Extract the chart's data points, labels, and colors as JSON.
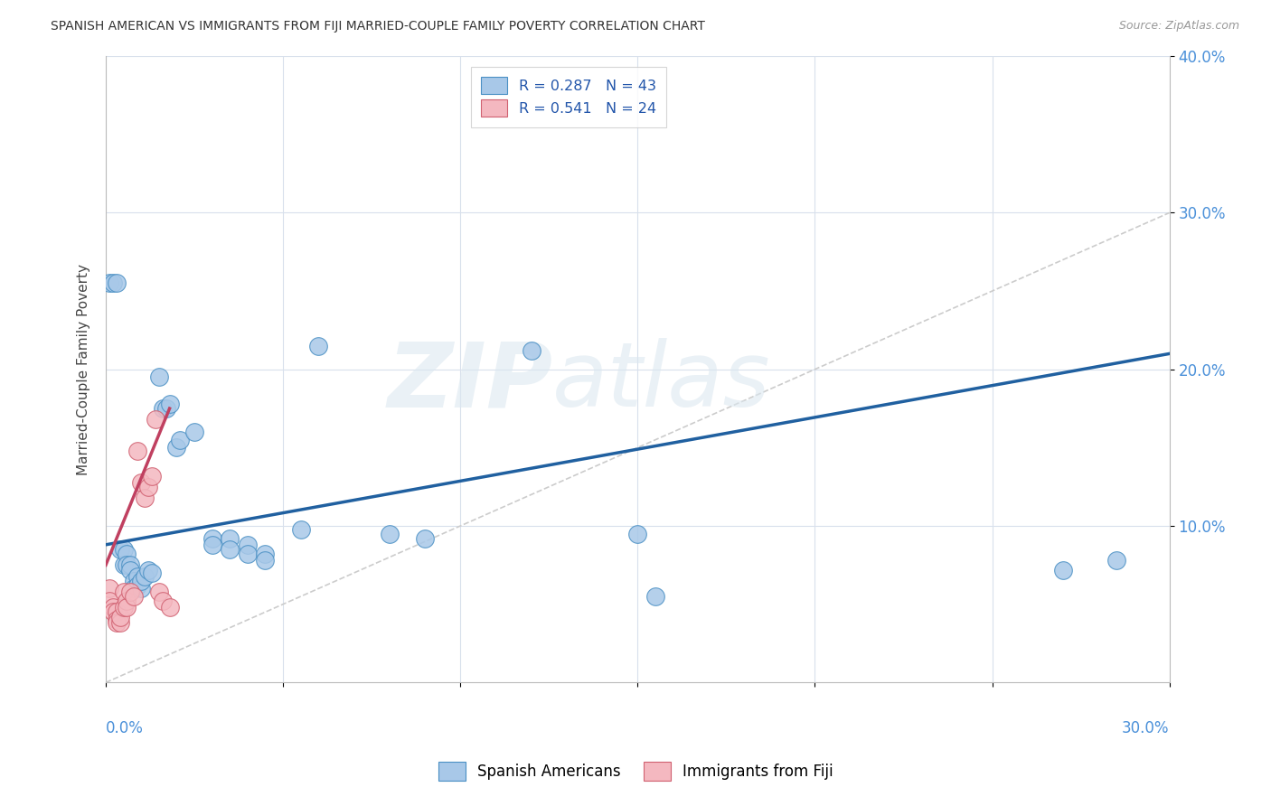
{
  "title": "SPANISH AMERICAN VS IMMIGRANTS FROM FIJI MARRIED-COUPLE FAMILY POVERTY CORRELATION CHART",
  "source": "Source: ZipAtlas.com",
  "ylabel": "Married-Couple Family Poverty",
  "xlim": [
    0.0,
    0.3
  ],
  "ylim": [
    0.0,
    0.4
  ],
  "yticks": [
    0.1,
    0.2,
    0.3,
    0.4
  ],
  "ytick_labels": [
    "10.0%",
    "20.0%",
    "30.0%",
    "40.0%"
  ],
  "watermark_zip": "ZIP",
  "watermark_atlas": "atlas",
  "blue_color": "#a8c8e8",
  "blue_edge": "#4a90c4",
  "pink_color": "#f4b8c0",
  "pink_edge": "#d06070",
  "line_blue_color": "#2060a0",
  "line_pink_color": "#c04060",
  "diag_color": "#cccccc",
  "grid_color": "#d8e0ec",
  "blue_scatter": [
    [
      0.001,
      0.255
    ],
    [
      0.002,
      0.255
    ],
    [
      0.003,
      0.255
    ],
    [
      0.004,
      0.085
    ],
    [
      0.005,
      0.085
    ],
    [
      0.005,
      0.075
    ],
    [
      0.006,
      0.082
    ],
    [
      0.006,
      0.075
    ],
    [
      0.007,
      0.075
    ],
    [
      0.007,
      0.072
    ],
    [
      0.008,
      0.065
    ],
    [
      0.008,
      0.06
    ],
    [
      0.009,
      0.068
    ],
    [
      0.009,
      0.062
    ],
    [
      0.01,
      0.06
    ],
    [
      0.01,
      0.065
    ],
    [
      0.011,
      0.068
    ],
    [
      0.012,
      0.072
    ],
    [
      0.013,
      0.07
    ],
    [
      0.015,
      0.195
    ],
    [
      0.016,
      0.175
    ],
    [
      0.017,
      0.175
    ],
    [
      0.018,
      0.178
    ],
    [
      0.02,
      0.15
    ],
    [
      0.021,
      0.155
    ],
    [
      0.025,
      0.16
    ],
    [
      0.03,
      0.092
    ],
    [
      0.03,
      0.088
    ],
    [
      0.035,
      0.092
    ],
    [
      0.035,
      0.085
    ],
    [
      0.04,
      0.088
    ],
    [
      0.04,
      0.082
    ],
    [
      0.045,
      0.082
    ],
    [
      0.045,
      0.078
    ],
    [
      0.055,
      0.098
    ],
    [
      0.06,
      0.215
    ],
    [
      0.08,
      0.095
    ],
    [
      0.09,
      0.092
    ],
    [
      0.12,
      0.212
    ],
    [
      0.15,
      0.095
    ],
    [
      0.155,
      0.055
    ],
    [
      0.27,
      0.072
    ],
    [
      0.285,
      0.078
    ]
  ],
  "pink_scatter": [
    [
      0.001,
      0.06
    ],
    [
      0.001,
      0.052
    ],
    [
      0.002,
      0.048
    ],
    [
      0.002,
      0.045
    ],
    [
      0.003,
      0.045
    ],
    [
      0.003,
      0.04
    ],
    [
      0.003,
      0.038
    ],
    [
      0.004,
      0.038
    ],
    [
      0.004,
      0.042
    ],
    [
      0.005,
      0.058
    ],
    [
      0.005,
      0.048
    ],
    [
      0.006,
      0.052
    ],
    [
      0.006,
      0.048
    ],
    [
      0.007,
      0.058
    ],
    [
      0.008,
      0.055
    ],
    [
      0.009,
      0.148
    ],
    [
      0.01,
      0.128
    ],
    [
      0.011,
      0.118
    ],
    [
      0.012,
      0.125
    ],
    [
      0.013,
      0.132
    ],
    [
      0.014,
      0.168
    ],
    [
      0.015,
      0.058
    ],
    [
      0.016,
      0.052
    ],
    [
      0.018,
      0.048
    ]
  ],
  "blue_line": [
    [
      0.0,
      0.088
    ],
    [
      0.3,
      0.21
    ]
  ],
  "pink_line": [
    [
      0.0,
      0.075
    ],
    [
      0.018,
      0.175
    ]
  ],
  "diag_line": [
    [
      0.0,
      0.0
    ],
    [
      0.3,
      0.3
    ]
  ]
}
